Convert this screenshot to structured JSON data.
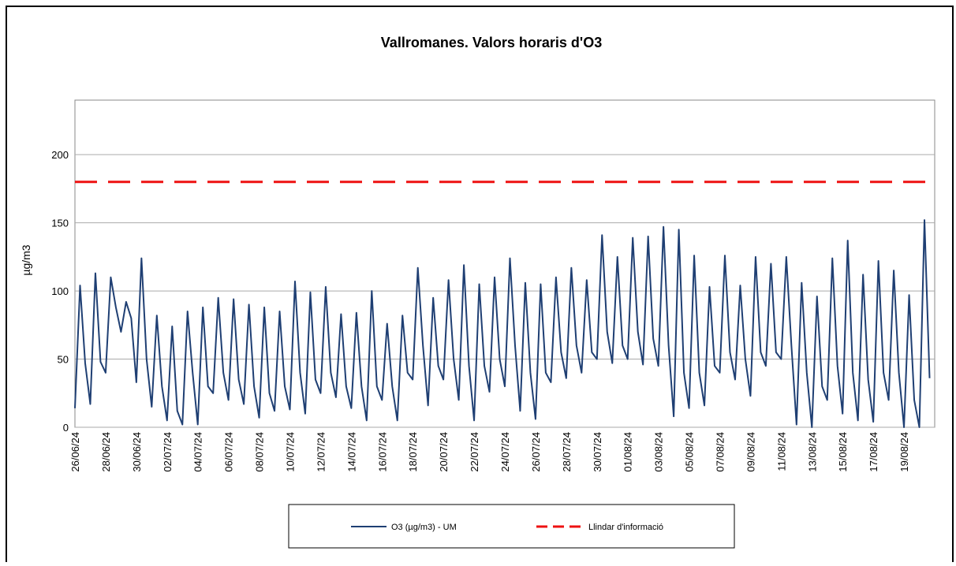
{
  "chart_data": {
    "type": "line",
    "title": "Vallromanes. Valors horaris d'O3",
    "ylabel": "µg/m3",
    "ylim": [
      0,
      240
    ],
    "yticks": [
      0,
      50,
      100,
      150,
      200
    ],
    "grid": true,
    "categories": [
      "26/06/24",
      null,
      null,
      null,
      null,
      null,
      "28/06/24",
      null,
      null,
      null,
      null,
      null,
      "30/06/24",
      null,
      null,
      null,
      null,
      null,
      "02/07/24",
      null,
      null,
      null,
      null,
      null,
      "04/07/24",
      null,
      null,
      null,
      null,
      null,
      "06/07/24",
      null,
      null,
      null,
      null,
      null,
      "08/07/24",
      null,
      null,
      null,
      null,
      null,
      "10/07/24",
      null,
      null,
      null,
      null,
      null,
      "12/07/24",
      null,
      null,
      null,
      null,
      null,
      "14/07/24",
      null,
      null,
      null,
      null,
      null,
      "16/07/24",
      null,
      null,
      null,
      null,
      null,
      "18/07/24",
      null,
      null,
      null,
      null,
      null,
      "20/07/24",
      null,
      null,
      null,
      null,
      null,
      "22/07/24",
      null,
      null,
      null,
      null,
      null,
      "24/07/24",
      null,
      null,
      null,
      null,
      null,
      "26/07/24",
      null,
      null,
      null,
      null,
      null,
      "28/07/24",
      null,
      null,
      null,
      null,
      null,
      "30/07/24",
      null,
      null,
      null,
      null,
      null,
      "01/08/24",
      null,
      null,
      null,
      null,
      null,
      "03/08/24",
      null,
      null,
      null,
      null,
      null,
      "05/08/24",
      null,
      null,
      null,
      null,
      null,
      "07/08/24",
      null,
      null,
      null,
      null,
      null,
      "09/08/24",
      null,
      null,
      null,
      null,
      null,
      "11/08/24",
      null,
      null,
      null,
      null,
      null,
      "13/08/24",
      null,
      null,
      null,
      null,
      null,
      "15/08/24",
      null,
      null,
      null,
      null,
      null,
      "17/08/24",
      null,
      null,
      null,
      null,
      null,
      "19/08/24",
      null,
      null,
      null,
      null,
      null
    ],
    "series": [
      {
        "name": "O3 (µg/m3) - UM",
        "color": "#1f3f73",
        "values": [
          14,
          104,
          47,
          17,
          113,
          48,
          40,
          110,
          88,
          70,
          92,
          80,
          33,
          124,
          50,
          15,
          82,
          30,
          5,
          74,
          12,
          2,
          85,
          40,
          2,
          88,
          30,
          25,
          95,
          40,
          20,
          94,
          35,
          17,
          90,
          30,
          7,
          88,
          25,
          12,
          85,
          30,
          13,
          107,
          40,
          10,
          99,
          35,
          25,
          103,
          40,
          22,
          83,
          30,
          14,
          84,
          30,
          5,
          100,
          30,
          20,
          76,
          30,
          5,
          82,
          40,
          35,
          117,
          60,
          16,
          95,
          45,
          35,
          108,
          50,
          20,
          119,
          45,
          5,
          105,
          45,
          26,
          110,
          50,
          30,
          124,
          60,
          12,
          106,
          40,
          6,
          105,
          40,
          33,
          110,
          55,
          36,
          117,
          60,
          40,
          108,
          55,
          50,
          141,
          70,
          47,
          125,
          60,
          50,
          139,
          70,
          46,
          140,
          65,
          45,
          147,
          60,
          8,
          145,
          40,
          14,
          126,
          40,
          16,
          103,
          45,
          40,
          126,
          55,
          35,
          104,
          50,
          23,
          125,
          55,
          45,
          120,
          55,
          50,
          125,
          60,
          2,
          106,
          40,
          0,
          96,
          30,
          20,
          124,
          45,
          10,
          137,
          40,
          5,
          112,
          35,
          4,
          122,
          40,
          20,
          115,
          40,
          0,
          97,
          20,
          0,
          152,
          36
        ]
      }
    ],
    "threshold": {
      "name": "Llindar d'informació",
      "value": 180,
      "color": "#ee1111"
    }
  }
}
